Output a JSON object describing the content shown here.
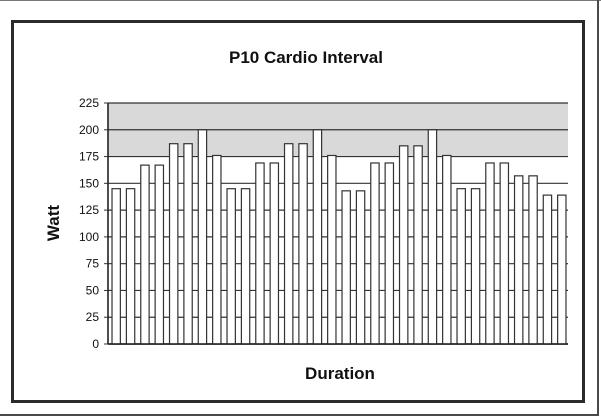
{
  "chart_data": {
    "type": "bar",
    "title": "P10 Cardio Interval",
    "xlabel": "Duration",
    "ylabel": "Watt",
    "ylim": [
      0,
      225
    ],
    "yticks": [
      0,
      25,
      50,
      75,
      100,
      125,
      150,
      175,
      200,
      225
    ],
    "grid": true,
    "legend": "none",
    "colors": {
      "bar_fill": "#ffffff",
      "bar_stroke": "#333333",
      "plot_band": "#d9d9d9",
      "gridline": "#333333"
    },
    "values": [
      145,
      145,
      167,
      167,
      187,
      187,
      200,
      176,
      145,
      145,
      169,
      169,
      187,
      187,
      200,
      176,
      143,
      143,
      169,
      169,
      185,
      185,
      200,
      176,
      145,
      145,
      169,
      169,
      157,
      157,
      139,
      139
    ]
  }
}
